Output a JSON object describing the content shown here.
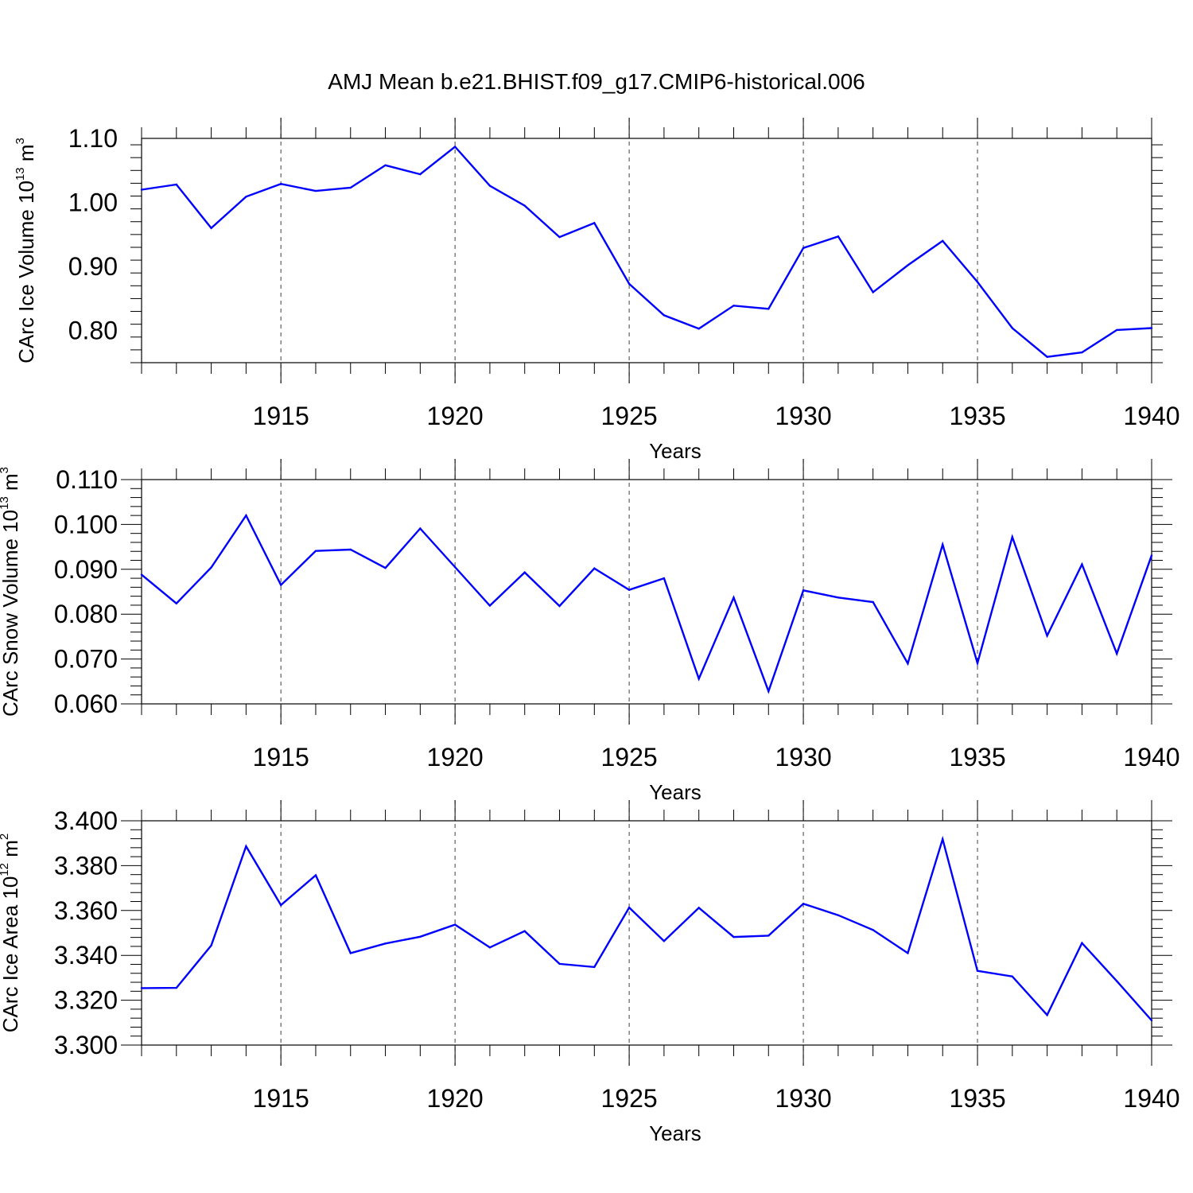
{
  "title": "AMJ Mean b.e21.BHIST.f09_g17.CMIP6-historical.006",
  "colors": {
    "line": "#0000ff",
    "axes": "#000000",
    "grid": "#000000"
  },
  "chart_data": [
    {
      "type": "line",
      "xlabel": "Years",
      "ylabel": {
        "prefix": "CArc Ice Volume 10",
        "exp": "13",
        "unit": " m",
        "unit_exp": "3"
      },
      "xlim": [
        1911,
        1940
      ],
      "ylim": [
        0.75,
        1.1
      ],
      "xticks": [
        "1915",
        "1920",
        "1925",
        "1930",
        "1935",
        "1940"
      ],
      "yticks": [
        "0.80",
        "0.90",
        "1.00",
        "1.10"
      ],
      "grid_x": [
        1915,
        1920,
        1925,
        1930,
        1935
      ],
      "x": [
        1911,
        1912,
        1913,
        1914,
        1915,
        1916,
        1917,
        1918,
        1919,
        1920,
        1921,
        1922,
        1923,
        1924,
        1925,
        1926,
        1927,
        1928,
        1929,
        1930,
        1931,
        1932,
        1933,
        1934,
        1935,
        1936,
        1937,
        1938,
        1939,
        1940
      ],
      "y": [
        1.02,
        1.028,
        0.96,
        1.009,
        1.029,
        1.018,
        1.023,
        1.058,
        1.044,
        1.087,
        1.026,
        0.995,
        0.946,
        0.968,
        0.873,
        0.824,
        0.803,
        0.839,
        0.834,
        0.929,
        0.947,
        0.86,
        0.902,
        0.94,
        0.876,
        0.804,
        0.759,
        0.766,
        0.801,
        0.804
      ]
    },
    {
      "type": "line",
      "xlabel": "Years",
      "ylabel": {
        "prefix": "CArc Snow Volume 10",
        "exp": "13",
        "unit": " m",
        "unit_exp": "3"
      },
      "xlim": [
        1911,
        1940
      ],
      "ylim": [
        0.06,
        0.11
      ],
      "xticks": [
        "1915",
        "1920",
        "1925",
        "1930",
        "1935",
        "1940"
      ],
      "yticks": [
        "0.060",
        "0.070",
        "0.080",
        "0.090",
        "0.100",
        "0.110"
      ],
      "grid_x": [
        1915,
        1920,
        1925,
        1930,
        1935
      ],
      "x": [
        1911,
        1912,
        1913,
        1914,
        1915,
        1916,
        1917,
        1918,
        1919,
        1920,
        1921,
        1922,
        1923,
        1924,
        1925,
        1926,
        1927,
        1928,
        1929,
        1930,
        1931,
        1932,
        1933,
        1934,
        1935,
        1936,
        1937,
        1938,
        1939,
        1940
      ],
      "y": [
        0.0888,
        0.0824,
        0.0904,
        0.102,
        0.0865,
        0.0941,
        0.0944,
        0.0903,
        0.0991,
        0.0905,
        0.0819,
        0.0893,
        0.0818,
        0.0902,
        0.0854,
        0.088,
        0.0656,
        0.0837,
        0.0628,
        0.0853,
        0.0837,
        0.0827,
        0.069,
        0.0955,
        0.0691,
        0.0972,
        0.0752,
        0.0911,
        0.0712,
        0.0931
      ]
    },
    {
      "type": "line",
      "xlabel": "Years",
      "ylabel": {
        "prefix": "CArc Ice Area 10",
        "exp": "12",
        "unit": " m",
        "unit_exp": "2"
      },
      "xlim": [
        1911,
        1940
      ],
      "ylim": [
        3.3,
        3.4
      ],
      "xticks": [
        "1915",
        "1920",
        "1925",
        "1930",
        "1935",
        "1940"
      ],
      "yticks": [
        "3.300",
        "3.320",
        "3.340",
        "3.360",
        "3.380",
        "3.400"
      ],
      "grid_x": [
        1915,
        1920,
        1925,
        1930,
        1935
      ],
      "x": [
        1911,
        1912,
        1913,
        1914,
        1915,
        1916,
        1917,
        1918,
        1919,
        1920,
        1921,
        1922,
        1923,
        1924,
        1925,
        1926,
        1927,
        1928,
        1929,
        1930,
        1931,
        1932,
        1933,
        1934,
        1935,
        1936,
        1937,
        1938,
        1939,
        1940
      ],
      "y": [
        3.3254,
        3.3255,
        3.3444,
        3.3886,
        3.3624,
        3.3757,
        3.341,
        3.3453,
        3.3483,
        3.3537,
        3.3435,
        3.3508,
        3.3362,
        3.3348,
        3.3613,
        3.3464,
        3.3612,
        3.3482,
        3.3488,
        3.363,
        3.3579,
        3.3513,
        3.341,
        3.3918,
        3.3331,
        3.3306,
        3.3134,
        3.3455,
        3.3285,
        3.311
      ]
    }
  ]
}
